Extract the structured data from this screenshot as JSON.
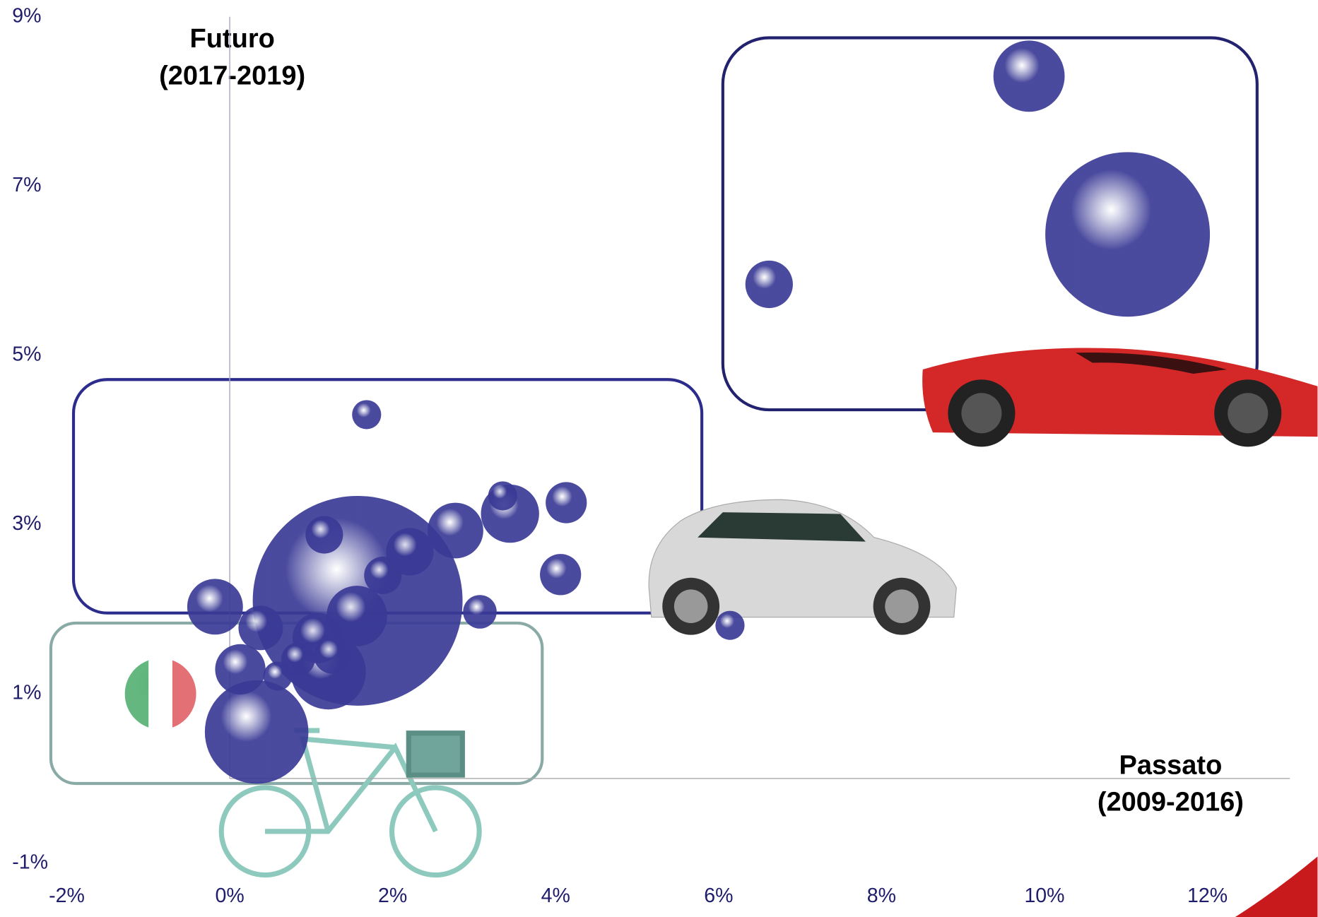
{
  "chart_data": {
    "type": "bubble",
    "y_label_lines": [
      "Futuro",
      "(2017-2019)"
    ],
    "x_label_lines": [
      "Passato",
      "(2009-2016)"
    ],
    "xlim": [
      -2.2,
      13.3
    ],
    "ylim": [
      -1.2,
      9.2
    ],
    "xticks": [
      {
        "value": -2,
        "label": "-2%"
      },
      {
        "value": 0,
        "label": "0%"
      },
      {
        "value": 2,
        "label": "2%"
      },
      {
        "value": 4,
        "label": "4%"
      },
      {
        "value": 6,
        "label": "6%"
      },
      {
        "value": 8,
        "label": "8%"
      },
      {
        "value": 10,
        "label": "10%"
      },
      {
        "value": 12,
        "label": "12%"
      }
    ],
    "yticks": [
      {
        "value": -1,
        "label": "-1%"
      },
      {
        "value": 1,
        "label": "1%"
      },
      {
        "value": 3,
        "label": "3%"
      },
      {
        "value": 5,
        "label": "5%"
      },
      {
        "value": 7,
        "label": "7%"
      },
      {
        "value": 9,
        "label": "9%"
      }
    ],
    "series": [
      {
        "color": "#3a3a96",
        "x": [
          1.57,
          11.02,
          9.81,
          6.62,
          0.33,
          1.21,
          1.56,
          2.77,
          3.44,
          3.35,
          4.13,
          4.06,
          2.21,
          1.16,
          1.88,
          3.07,
          -0.18,
          0.38,
          0.13,
          1.08,
          1.26,
          0.84,
          0.59,
          1.68,
          6.14
        ],
        "values": [
          2.1,
          6.43,
          8.3,
          5.84,
          0.55,
          1.26,
          1.92,
          2.93,
          3.13,
          3.34,
          3.26,
          2.41,
          2.68,
          2.88,
          2.4,
          1.97,
          2.03,
          1.78,
          1.29,
          1.66,
          1.46,
          1.41,
          1.21,
          4.3,
          1.81
        ],
        "sizes": [
          156,
          96,
          18,
          8,
          38,
          20,
          13,
          11,
          12,
          3,
          6,
          6,
          8,
          5,
          5,
          4,
          11,
          7,
          9,
          9,
          5,
          4,
          3,
          3,
          3
        ]
      },
      {
        "color": "#ffffff",
        "stripes": [
          "#11913a",
          "#ffffff",
          "#d2232a"
        ],
        "x": [
          -0.85
        ],
        "values": [
          1.0
        ],
        "sizes": [
          18
        ]
      }
    ]
  }
}
